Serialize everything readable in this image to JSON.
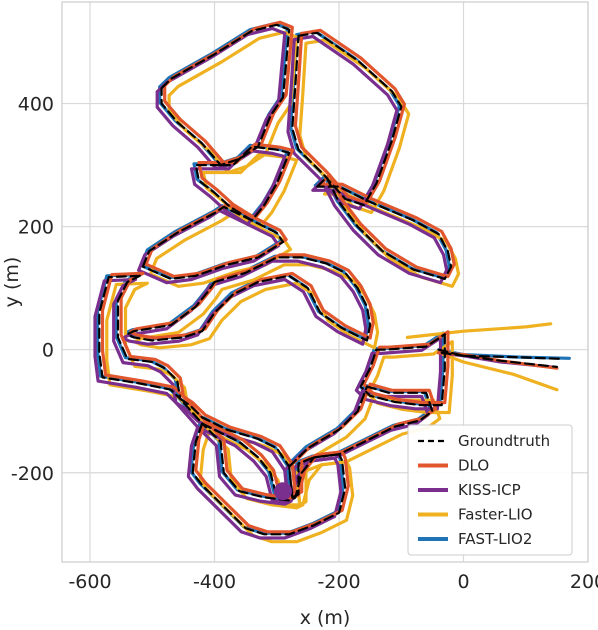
{
  "chart_data": {
    "type": "line",
    "title": "",
    "xlabel": "x (m)",
    "ylabel": "y (m)",
    "xlim": [
      -645,
      200
    ],
    "ylim": [
      -345,
      565
    ],
    "xticks": [
      -600,
      -400,
      -200,
      0,
      200
    ],
    "yticks": [
      -200,
      0,
      200,
      400
    ],
    "xtick_labels": [
      "-600",
      "-400",
      "-200",
      "0",
      "200"
    ],
    "ytick_labels": [
      "-200",
      "0",
      "200",
      "400"
    ],
    "grid": true,
    "legend_position": "bottom-right",
    "end_marker": {
      "series": "KISS-ICP",
      "x": -290,
      "y": -230
    },
    "series": [
      {
        "name": "Groundtruth",
        "color": "#000000",
        "dash": true,
        "offset": [
          0,
          0
        ],
        "tails": [
          [
            [
              -40,
              0
            ],
            [
              0,
              -10
            ],
            [
              80,
              -12
            ],
            [
              160,
              -15
            ]
          ],
          [
            [
              -35,
              -5
            ],
            [
              60,
              -18
            ],
            [
              150,
              -28
            ]
          ]
        ]
      },
      {
        "name": "DLO",
        "color": "#e1562c",
        "dash": false,
        "offset": [
          5,
          4
        ],
        "tails": [
          [
            [
              -40,
              -5
            ],
            [
              0,
              -8
            ],
            [
              60,
              -18
            ],
            [
              150,
              -30
            ]
          ]
        ]
      },
      {
        "name": "KISS-ICP",
        "color": "#7a2f8f",
        "dash": false,
        "offset": [
          -7,
          -6
        ],
        "tails": [
          [
            [
              -40,
              -5
            ],
            [
              0,
              -10
            ],
            [
              60,
              -20
            ],
            [
              140,
              -28
            ]
          ]
        ]
      },
      {
        "name": "Faster-LIO",
        "color": "#efb120",
        "dash": false,
        "offset": [
          12,
          -12
        ],
        "tails": [
          [
            [
              -90,
              20
            ],
            [
              0,
              30
            ],
            [
              100,
              37
            ],
            [
              140,
              42
            ]
          ],
          [
            [
              -40,
              -5
            ],
            [
              0,
              -20
            ],
            [
              80,
              -40
            ],
            [
              150,
              -65
            ]
          ]
        ]
      },
      {
        "name": "FAST-LIO2",
        "color": "#1f74b7",
        "dash": false,
        "offset": [
          -3,
          2
        ],
        "tails": [
          [
            [
              -40,
              0
            ],
            [
              0,
              -8
            ],
            [
              90,
              -12
            ],
            [
              170,
              -14
            ]
          ]
        ]
      }
    ],
    "base_loops": [
      [
        [
          -485,
          425
        ],
        [
          -470,
          440
        ],
        [
          -400,
          480
        ],
        [
          -340,
          518
        ],
        [
          -300,
          528
        ],
        [
          -280,
          520
        ],
        [
          -290,
          410
        ],
        [
          -310,
          380
        ],
        [
          -330,
          330
        ],
        [
          -360,
          310
        ],
        [
          -390,
          300
        ],
        [
          -420,
          335
        ],
        [
          -460,
          370
        ],
        [
          -485,
          400
        ],
        [
          -485,
          425
        ]
      ],
      [
        [
          -265,
          510
        ],
        [
          -235,
          515
        ],
        [
          -170,
          470
        ],
        [
          -115,
          420
        ],
        [
          -100,
          395
        ],
        [
          -115,
          340
        ],
        [
          -140,
          270
        ],
        [
          -160,
          235
        ],
        [
          -190,
          245
        ],
        [
          -225,
          285
        ],
        [
          -265,
          325
        ],
        [
          -275,
          360
        ],
        [
          -270,
          430
        ],
        [
          -265,
          510
        ]
      ],
      [
        [
          -390,
          300
        ],
        [
          -370,
          300
        ],
        [
          -340,
          330
        ],
        [
          -300,
          325
        ],
        [
          -280,
          320
        ],
        [
          -300,
          270
        ],
        [
          -320,
          235
        ],
        [
          -340,
          210
        ],
        [
          -375,
          232
        ],
        [
          -400,
          255
        ],
        [
          -425,
          275
        ],
        [
          -430,
          300
        ],
        [
          -390,
          300
        ]
      ],
      [
        [
          -515,
          135
        ],
        [
          -505,
          160
        ],
        [
          -460,
          190
        ],
        [
          -400,
          222
        ],
        [
          -385,
          232
        ],
        [
          -340,
          210
        ],
        [
          -300,
          190
        ],
        [
          -290,
          175
        ],
        [
          -330,
          150
        ],
        [
          -380,
          138
        ],
        [
          -430,
          120
        ],
        [
          -470,
          115
        ],
        [
          -515,
          135
        ]
      ],
      [
        [
          -235,
          265
        ],
        [
          -220,
          280
        ],
        [
          -200,
          240
        ],
        [
          -170,
          200
        ],
        [
          -130,
          160
        ],
        [
          -80,
          130
        ],
        [
          -30,
          115
        ],
        [
          -20,
          135
        ],
        [
          -25,
          160
        ],
        [
          -40,
          188
        ],
        [
          -80,
          210
        ],
        [
          -150,
          240
        ],
        [
          -200,
          265
        ],
        [
          -235,
          265
        ]
      ],
      [
        [
          -400,
          110
        ],
        [
          -350,
          125
        ],
        [
          -300,
          150
        ],
        [
          -260,
          150
        ],
        [
          -220,
          140
        ],
        [
          -190,
          125
        ],
        [
          -170,
          100
        ],
        [
          -155,
          70
        ],
        [
          -150,
          40
        ],
        [
          -155,
          15
        ],
        [
          -195,
          35
        ],
        [
          -230,
          60
        ],
        [
          -250,
          100
        ],
        [
          -280,
          120
        ],
        [
          -330,
          110
        ],
        [
          -370,
          90
        ],
        [
          -400,
          60
        ],
        [
          -420,
          30
        ],
        [
          -450,
          20
        ],
        [
          -500,
          15
        ],
        [
          -530,
          20
        ],
        [
          -540,
          25
        ],
        [
          -530,
          30
        ],
        [
          -470,
          40
        ],
        [
          -430,
          70
        ],
        [
          -410,
          95
        ],
        [
          -400,
          110
        ]
      ],
      [
        [
          -520,
          120
        ],
        [
          -570,
          118
        ],
        [
          -585,
          60
        ],
        [
          -585,
          -5
        ],
        [
          -580,
          -45
        ],
        [
          -520,
          -55
        ],
        [
          -470,
          -65
        ],
        [
          -455,
          -80
        ],
        [
          -460,
          -50
        ],
        [
          -480,
          -30
        ],
        [
          -500,
          -20
        ],
        [
          -540,
          -15
        ],
        [
          -555,
          20
        ],
        [
          -555,
          80
        ],
        [
          -540,
          110
        ],
        [
          -520,
          120
        ]
      ],
      [
        [
          -30,
          25
        ],
        [
          -30,
          -30
        ],
        [
          -35,
          -90
        ],
        [
          -70,
          -90
        ],
        [
          -110,
          -85
        ],
        [
          -150,
          -75
        ],
        [
          -165,
          -60
        ],
        [
          -150,
          -30
        ],
        [
          -140,
          0
        ],
        [
          -125,
          0
        ],
        [
          -60,
          5
        ],
        [
          -30,
          25
        ]
      ],
      [
        [
          -455,
          -80
        ],
        [
          -440,
          -90
        ],
        [
          -420,
          -110
        ],
        [
          -380,
          -130
        ],
        [
          -330,
          -145
        ],
        [
          -300,
          -160
        ],
        [
          -280,
          -190
        ],
        [
          -275,
          -240
        ],
        [
          -300,
          -240
        ],
        [
          -310,
          -200
        ],
        [
          -330,
          -175
        ],
        [
          -360,
          -150
        ],
        [
          -390,
          -135
        ],
        [
          -420,
          -120
        ],
        [
          -455,
          -80
        ]
      ],
      [
        [
          -155,
          -60
        ],
        [
          -120,
          -70
        ],
        [
          -90,
          -70
        ],
        [
          -60,
          -70
        ],
        [
          -50,
          -100
        ],
        [
          -70,
          -115
        ],
        [
          -110,
          -125
        ],
        [
          -150,
          -145
        ],
        [
          -200,
          -170
        ],
        [
          -240,
          -175
        ],
        [
          -265,
          -185
        ],
        [
          -265,
          -235
        ],
        [
          -275,
          -240
        ],
        [
          -280,
          -190
        ],
        [
          -250,
          -160
        ],
        [
          -200,
          -130
        ],
        [
          -170,
          -100
        ],
        [
          -155,
          -60
        ]
      ],
      [
        [
          -420,
          -120
        ],
        [
          -430,
          -150
        ],
        [
          -435,
          -200
        ],
        [
          -420,
          -220
        ],
        [
          -390,
          -250
        ],
        [
          -350,
          -290
        ],
        [
          -320,
          -300
        ],
        [
          -280,
          -300
        ],
        [
          -240,
          -285
        ],
        [
          -200,
          -265
        ],
        [
          -190,
          -225
        ],
        [
          -195,
          -180
        ],
        [
          -200,
          -170
        ],
        [
          -240,
          -175
        ],
        [
          -260,
          -200
        ],
        [
          -270,
          -240
        ],
        [
          -280,
          -245
        ],
        [
          -320,
          -240
        ],
        [
          -360,
          -230
        ],
        [
          -385,
          -200
        ],
        [
          -390,
          -150
        ],
        [
          -420,
          -120
        ]
      ]
    ]
  }
}
